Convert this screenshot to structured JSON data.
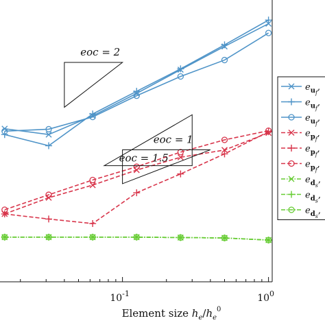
{
  "chart_data": {
    "type": "line",
    "xscale": "log",
    "yscale": "log",
    "xlabel": "Element size h_e/h_e^0",
    "xlabel_parts": {
      "main": "Element size ",
      "h1": "h",
      "s1": "e",
      "slash": "/",
      "h2": "h",
      "s2": "e",
      "sup": "0"
    },
    "xlim": [
      0.0145,
      1.06
    ],
    "ylim": [
      1e-05,
      1.0
    ],
    "x_ticks": [
      {
        "value": 0.1,
        "base": "10",
        "exp": "-1"
      },
      {
        "value": 1,
        "base": "10",
        "exp": "0"
      }
    ],
    "grid": false,
    "series": [
      {
        "name": "e_uf,",
        "color": "#4f94c8",
        "dash": "solid",
        "marker": "x",
        "x": [
          0.0156,
          0.03125,
          0.0625,
          0.125,
          0.25,
          0.5,
          1.0
        ],
        "y": [
          0.0052,
          0.0041,
          0.0088,
          0.022,
          0.058,
          0.15,
          0.38
        ]
      },
      {
        "name": "e_uf,",
        "color": "#4f94c8",
        "dash": "solid",
        "marker": "plus",
        "x": [
          0.0156,
          0.03125,
          0.0625,
          0.125,
          0.25,
          0.5,
          1.0
        ],
        "y": [
          0.0041,
          0.0026,
          0.0095,
          0.024,
          0.06,
          0.16,
          0.44
        ]
      },
      {
        "name": "e_uf,",
        "color": "#4f94c8",
        "dash": "solid",
        "marker": "circle",
        "x": [
          0.0156,
          0.03125,
          0.0625,
          0.125,
          0.25,
          0.5,
          1.0
        ],
        "y": [
          0.0047,
          0.0051,
          0.0084,
          0.02,
          0.044,
          0.086,
          0.26
        ]
      },
      {
        "name": "e_pf,",
        "color": "#d8344a",
        "dash": "dashed",
        "marker": "x",
        "x": [
          0.0156,
          0.03125,
          0.0625,
          0.125,
          0.25,
          0.5,
          1.0
        ],
        "y": [
          0.00016,
          0.00031,
          0.00052,
          0.00096,
          0.00162,
          0.00218,
          0.0044
        ]
      },
      {
        "name": "e_pf,",
        "color": "#d8344a",
        "dash": "dashed",
        "marker": "plus",
        "x": [
          0.0156,
          0.03125,
          0.0625,
          0.125,
          0.25,
          0.5,
          1.0
        ],
        "y": [
          0.00016,
          0.00013,
          0.000108,
          0.00038,
          0.00082,
          0.00186,
          0.0046
        ]
      },
      {
        "name": "e_pf,",
        "color": "#d8344a",
        "dash": "dashed",
        "marker": "circle",
        "x": [
          0.0156,
          0.03125,
          0.0625,
          0.125,
          0.25,
          0.5,
          1.0
        ],
        "y": [
          0.00019,
          0.00035,
          0.00064,
          0.0011,
          0.002,
          0.0033,
          0.0048
        ]
      },
      {
        "name": "e_ds,",
        "color": "#66cc33",
        "dash": "dashdot",
        "marker": "x",
        "x": [
          0.0156,
          0.03125,
          0.0625,
          0.125,
          0.25,
          0.5,
          1.0
        ],
        "y": [
          6.2e-05,
          6.2e-05,
          6.2e-05,
          6.2e-05,
          6.1e-05,
          6e-05,
          5.5e-05
        ]
      },
      {
        "name": "e_ds,",
        "color": "#66cc33",
        "dash": "dashdot",
        "marker": "plus",
        "x": [
          0.0156,
          0.03125,
          0.0625,
          0.125,
          0.25,
          0.5,
          1.0
        ],
        "y": [
          6.2e-05,
          6.2e-05,
          6.2e-05,
          6.2e-05,
          6.1e-05,
          6e-05,
          5.5e-05
        ]
      },
      {
        "name": "e_ds,",
        "color": "#66cc33",
        "dash": "dashdot",
        "marker": "circle",
        "x": [
          0.0156,
          0.03125,
          0.0625,
          0.125,
          0.25,
          0.5,
          1.0
        ],
        "y": [
          6.2e-05,
          6.2e-05,
          6.2e-05,
          6.2e-05,
          6.1e-05,
          6e-05,
          5.5e-05
        ]
      }
    ],
    "legend": {
      "placement": "right",
      "entries": [
        {
          "main": "e",
          "sub": "u",
          "subsub": "f",
          "tail": ","
        },
        {
          "main": "e",
          "sub": "u",
          "subsub": "f",
          "tail": ","
        },
        {
          "main": "e",
          "sub": "u",
          "subsub": "f",
          "tail": ","
        },
        {
          "main": "e",
          "sub": "p",
          "subsub": "f",
          "tail": ","
        },
        {
          "main": "e",
          "sub": "p",
          "subsub": "f",
          "tail": ","
        },
        {
          "main": "e",
          "sub": "p",
          "subsub": "f",
          "tail": ","
        },
        {
          "main": "e",
          "sub": "d",
          "subsub": "s",
          "tail": ","
        },
        {
          "main": "e",
          "sub": "d",
          "subsub": "s",
          "tail": ","
        },
        {
          "main": "e",
          "sub": "d",
          "subsub": "s",
          "tail": ","
        }
      ]
    },
    "annotations": [
      {
        "label": "eoc = 2",
        "slope": 2,
        "orientation": "upper",
        "x0": 0.04,
        "x1": 0.1,
        "y_corner": 0.0125
      },
      {
        "label": "eoc = 1",
        "slope": 1,
        "orientation": "upper",
        "x0": 0.1,
        "x1": 0.4,
        "y_corner": 0.00055
      },
      {
        "label": "eoc = 1.5",
        "slope": 1.5,
        "orientation": "lower",
        "x0": 0.075,
        "x1": 0.3,
        "y_corner": 0.00115
      }
    ]
  }
}
